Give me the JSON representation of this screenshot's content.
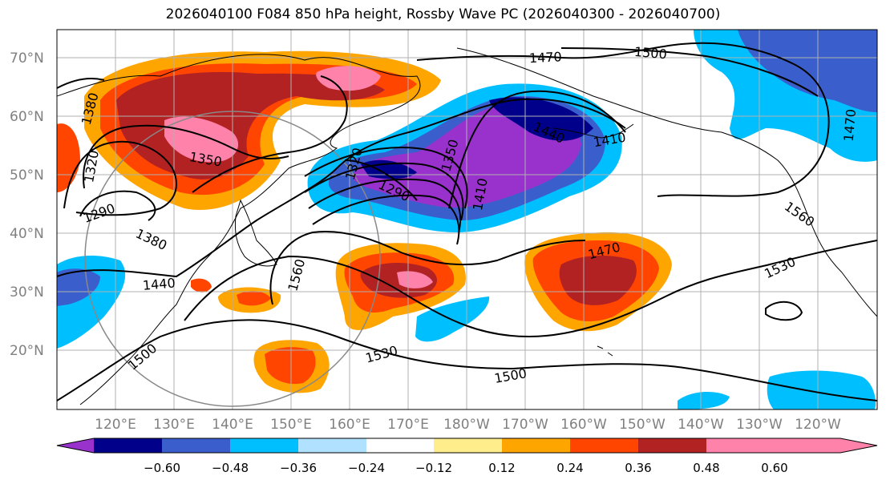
{
  "title": "2026040100 F084 850 hPa height, Rossby Wave PC (2026040300 - 2026040700)",
  "lat_labels": [
    "70°N",
    "60°N",
    "50°N",
    "40°N",
    "30°N",
    "20°N"
  ],
  "lon_labels": [
    "120°E",
    "130°E",
    "140°E",
    "150°E",
    "160°E",
    "170°E",
    "180°W",
    "170°W",
    "160°W",
    "150°W",
    "140°W",
    "130°W",
    "120°W"
  ],
  "colorbar": {
    "colors": [
      "#9932cc",
      "#00008b",
      "#3a5fcd",
      "#00bfff",
      "#b0e2ff",
      "#ffffff",
      "#ffec8b",
      "#ffa500",
      "#ff4500",
      "#b22222",
      "#ff82ab"
    ],
    "labels": [
      "−0.60",
      "−0.48",
      "−0.36",
      "−0.24",
      "−0.12",
      "0.12",
      "0.24",
      "0.36",
      "0.48",
      "0.60"
    ]
  },
  "contour_labels": [
    "1380",
    "1320",
    "1290",
    "1350",
    "1380",
    "1440",
    "1500",
    "1560",
    "1530",
    "1500",
    "1290",
    "1320",
    "1350",
    "1410",
    "1440",
    "1410",
    "1470",
    "1500",
    "1470",
    "1470",
    "1560",
    "1530"
  ]
}
